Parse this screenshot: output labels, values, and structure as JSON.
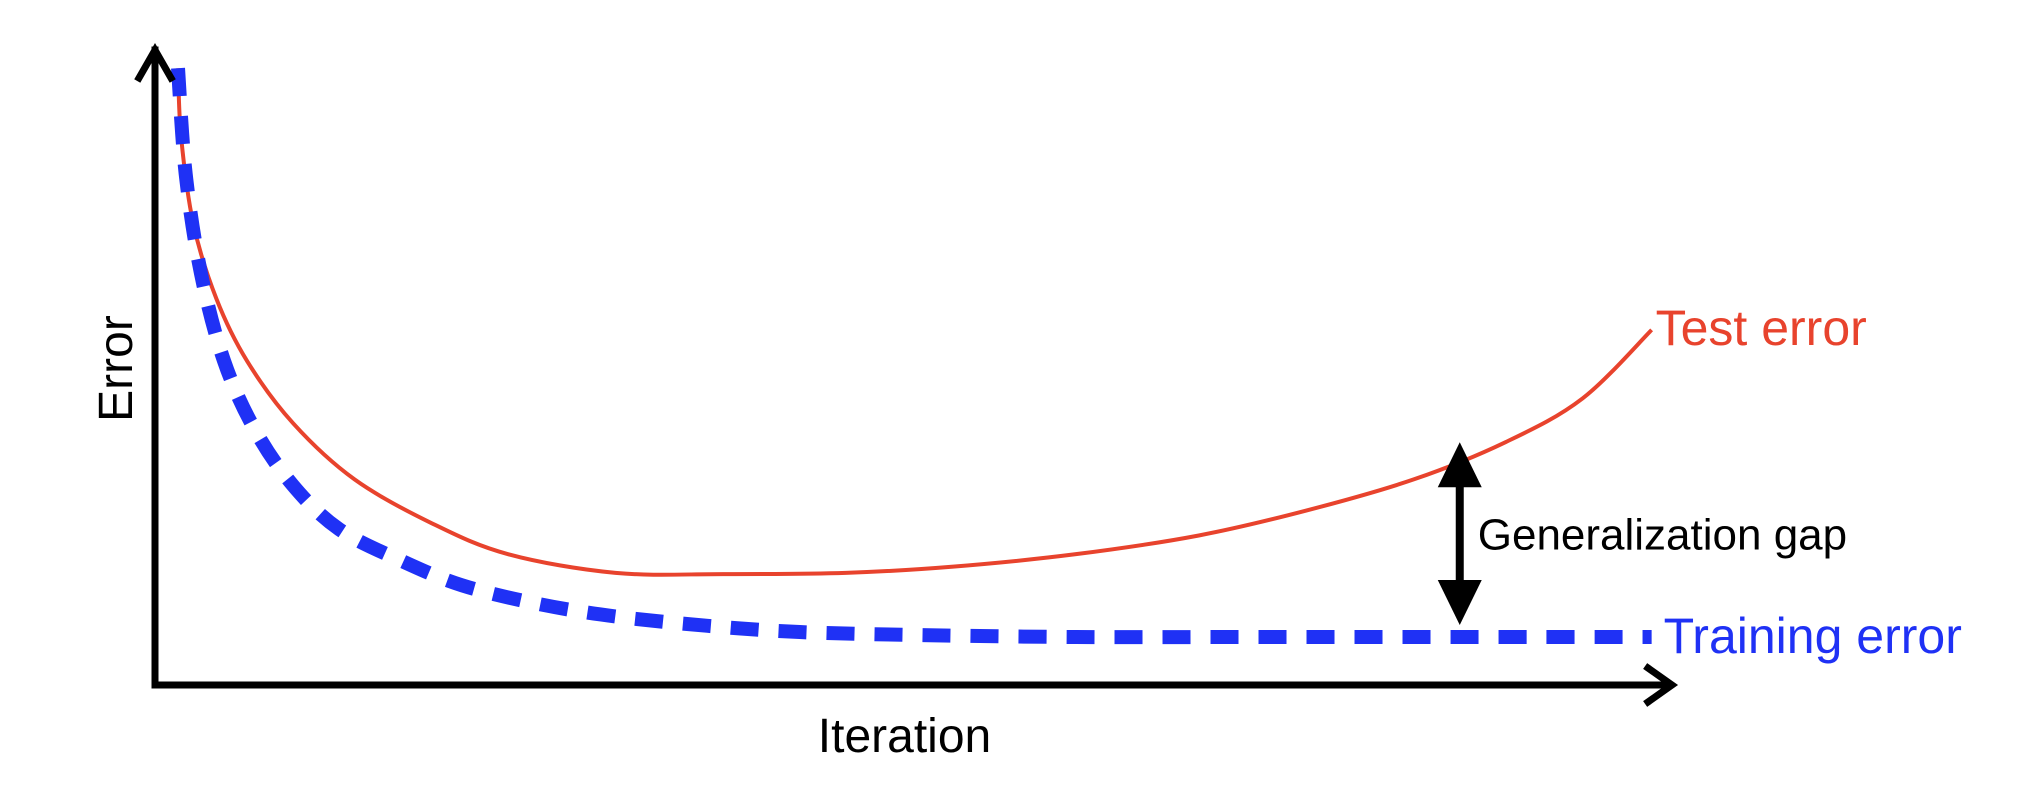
{
  "chart_data": {
    "type": "line",
    "title": "",
    "xlabel": "Iteration",
    "ylabel": "Error",
    "grid": false,
    "xlim": [
      0,
      1
    ],
    "ylim": [
      0,
      1
    ],
    "series": [
      {
        "name": "Test error",
        "color": "#e8432d",
        "style": "solid",
        "x": [
          0.015,
          0.017,
          0.025,
          0.04,
          0.06,
          0.09,
          0.13,
          0.18,
          0.23,
          0.3,
          0.37,
          0.45,
          0.52,
          0.6,
          0.68,
          0.75,
          0.82,
          0.88,
          0.93,
          0.975
        ],
        "y": [
          0.99,
          0.88,
          0.74,
          0.62,
          0.52,
          0.42,
          0.33,
          0.26,
          0.21,
          0.18,
          0.178,
          0.18,
          0.19,
          0.21,
          0.24,
          0.28,
          0.33,
          0.39,
          0.46,
          0.57
        ]
      },
      {
        "name": "Training error",
        "color": "#1f31f5",
        "style": "dashed",
        "x": [
          0.015,
          0.02,
          0.03,
          0.045,
          0.065,
          0.09,
          0.12,
          0.16,
          0.2,
          0.25,
          0.3,
          0.36,
          0.42,
          0.5,
          0.6,
          0.7,
          0.8,
          0.9,
          0.975
        ],
        "y": [
          0.99,
          0.82,
          0.66,
          0.52,
          0.41,
          0.32,
          0.25,
          0.2,
          0.16,
          0.13,
          0.11,
          0.095,
          0.085,
          0.08,
          0.077,
          0.077,
          0.077,
          0.077,
          0.077
        ]
      }
    ],
    "annotations": [
      {
        "text": "Generalization gap",
        "x": 0.85,
        "y_from": 0.077,
        "y_to": 0.38
      }
    ]
  }
}
